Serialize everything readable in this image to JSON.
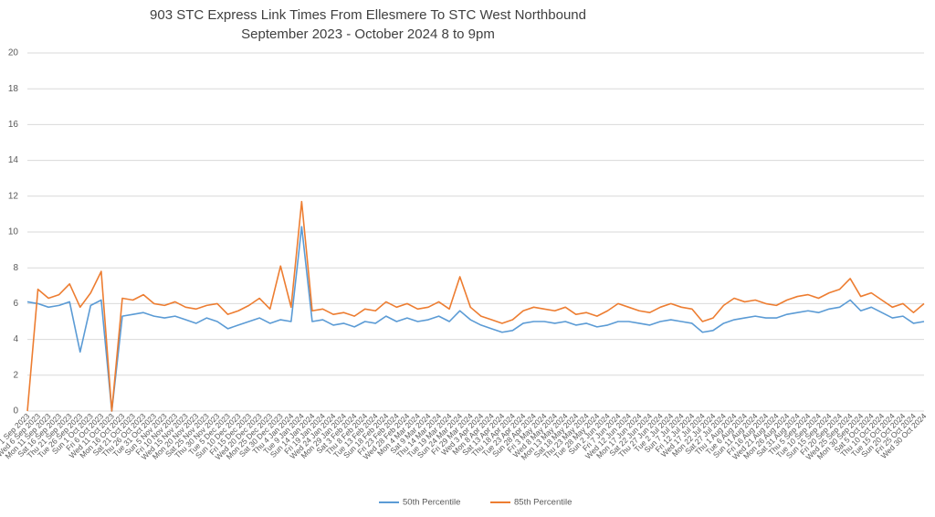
{
  "chart_data": {
    "type": "line",
    "title": "903 STC Express Link Times From Ellesmere To STC West Northbound",
    "subtitle": "September 2023 - October 2024 8 to 9pm",
    "categories": [
      "Fri 1 Sep 2023",
      "Wed 6 Sep 2023",
      "Mon 11 Sep 2023",
      "Sat 16 Sep 2023",
      "Thu 21 Sep 2023",
      "Tue 26 Sep 2023",
      "Sun 1 Oct 2023",
      "Fri 6 Oct 2023",
      "Wed 11 Oct 2023",
      "Mon 16 Oct 2023",
      "Sat 21 Oct 2023",
      "Thu 26 Oct 2023",
      "Tue 31 Oct 2023",
      "Sun 5 Nov 2023",
      "Fri 10 Nov 2023",
      "Wed 15 Nov 2023",
      "Mon 20 Nov 2023",
      "Sat 25 Nov 2023",
      "Thu 30 Nov 2023",
      "Tue 5 Dec 2023",
      "Sun 10 Dec 2023",
      "Fri 15 Dec 2023",
      "Wed 20 Dec 2023",
      "Mon 25 Dec 2023",
      "Sat 30 Dec 2023",
      "Thu 4 Jan 2024",
      "Tue 9 Jan 2024",
      "Sun 14 Jan 2024",
      "Fri 19 Jan 2024",
      "Wed 24 Jan 2024",
      "Mon 29 Jan 2024",
      "Sat 3 Feb 2024",
      "Thu 8 Feb 2024",
      "Tue 13 Feb 2024",
      "Sun 18 Feb 2024",
      "Fri 23 Feb 2024",
      "Wed 28 Feb 2024",
      "Mon 4 Mar 2024",
      "Sat 9 Mar 2024",
      "Thu 14 Mar 2024",
      "Tue 19 Mar 2024",
      "Sun 24 Mar 2024",
      "Fri 29 Mar 2024",
      "Wed 3 Apr 2024",
      "Mon 8 Apr 2024",
      "Sat 13 Apr 2024",
      "Thu 18 Apr 2024",
      "Tue 23 Apr 2024",
      "Sun 28 Apr 2024",
      "Fri 3 May 2024",
      "Wed 8 May 2024",
      "Mon 13 May 2024",
      "Sat 18 May 2024",
      "Thu 23 May 2024",
      "Tue 28 May 2024",
      "Sun 2 Jun 2024",
      "Fri 7 Jun 2024",
      "Wed 12 Jun 2024",
      "Mon 17 Jun 2024",
      "Sat 22 Jun 2024",
      "Thu 27 Jun 2024",
      "Tue 2 Jul 2024",
      "Sun 7 Jul 2024",
      "Fri 12 Jul 2024",
      "Wed 17 Jul 2024",
      "Mon 22 Jul 2024",
      "Sat 27 Jul 2024",
      "Thu 1 Aug 2024",
      "Tue 6 Aug 2024",
      "Sun 11 Aug 2024",
      "Fri 16 Aug 2024",
      "Wed 21 Aug 2024",
      "Mon 26 Aug 2024",
      "Sat 31 Aug 2024",
      "Thu 5 Sep 2024",
      "Tue 10 Sep 2024",
      "Sun 15 Sep 2024",
      "Fri 20 Sep 2024",
      "Wed 25 Sep 2024",
      "Mon 30 Sep 2024",
      "Sat 5 Oct 2024",
      "Thu 10 Oct 2024",
      "Tue 15 Oct 2024",
      "Sun 20 Oct 2024",
      "Fri 25 Oct 2024",
      "Wed 30 Oct 2024"
    ],
    "series": [
      {
        "name": "50th Percentile",
        "color": "#5b9bd5",
        "values": [
          6.1,
          6.0,
          5.8,
          5.9,
          6.1,
          3.3,
          5.9,
          6.2,
          0,
          5.3,
          5.4,
          5.5,
          5.3,
          5.2,
          5.3,
          5.1,
          4.9,
          5.2,
          5.0,
          4.6,
          4.8,
          5.0,
          5.2,
          4.9,
          5.1,
          5.0,
          10.3,
          5.0,
          5.1,
          4.8,
          4.9,
          4.7,
          5.0,
          4.9,
          5.3,
          5.0,
          5.2,
          5.0,
          5.1,
          5.3,
          5.0,
          5.6,
          5.1,
          4.8,
          4.6,
          4.4,
          4.5,
          4.9,
          5.0,
          5.0,
          4.9,
          5.0,
          4.8,
          4.9,
          4.7,
          4.8,
          5.0,
          5.0,
          4.9,
          4.8,
          5.0,
          5.1,
          5.0,
          4.9,
          4.4,
          4.5,
          4.9,
          5.1,
          5.2,
          5.3,
          5.2,
          5.2,
          5.4,
          5.5,
          5.6,
          5.5,
          5.7,
          5.8,
          6.2,
          5.6,
          5.8,
          5.5,
          5.2,
          5.3,
          4.9,
          5.0
        ]
      },
      {
        "name": "85th Percentile",
        "color": "#ed7d31",
        "values": [
          0,
          6.8,
          6.3,
          6.5,
          7.1,
          5.8,
          6.6,
          7.8,
          0,
          6.3,
          6.2,
          6.5,
          6.0,
          5.9,
          6.1,
          5.8,
          5.7,
          5.9,
          6.0,
          5.4,
          5.6,
          5.9,
          6.3,
          5.7,
          8.1,
          5.8,
          11.7,
          5.6,
          5.7,
          5.4,
          5.5,
          5.3,
          5.7,
          5.6,
          6.1,
          5.8,
          6.0,
          5.7,
          5.8,
          6.1,
          5.7,
          7.5,
          5.8,
          5.3,
          5.1,
          4.9,
          5.1,
          5.6,
          5.8,
          5.7,
          5.6,
          5.8,
          5.4,
          5.5,
          5.3,
          5.6,
          6.0,
          5.8,
          5.6,
          5.5,
          5.8,
          6.0,
          5.8,
          5.7,
          5.0,
          5.2,
          5.9,
          6.3,
          6.1,
          6.2,
          6.0,
          5.9,
          6.2,
          6.4,
          6.5,
          6.3,
          6.6,
          6.8,
          7.4,
          6.4,
          6.6,
          6.2,
          5.8,
          6.0,
          5.5,
          6.0
        ]
      }
    ],
    "ylim": [
      0,
      20
    ],
    "yticks": [
      0,
      2,
      4,
      6,
      8,
      10,
      12,
      14,
      16,
      18,
      20
    ],
    "grid": true,
    "legend": "bottom"
  }
}
